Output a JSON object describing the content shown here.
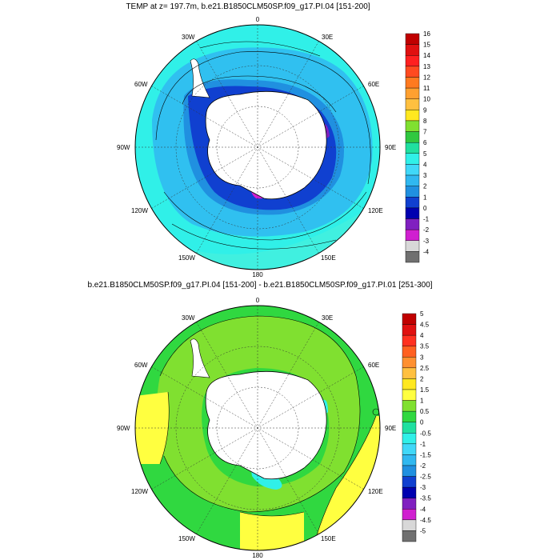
{
  "panels": [
    {
      "title": "TEMP at z= 197.7m, b.e21.B1850CLM50SP.f09_g17.PI.04 [151-200]",
      "colorbar": {
        "labels": [
          "16",
          "15",
          "14",
          "13",
          "12",
          "11",
          "10",
          "9",
          "8",
          "7",
          "6",
          "5",
          "4",
          "3",
          "2",
          "1",
          "0",
          "-1",
          "-2",
          "-3",
          "-4"
        ],
        "colors": [
          "#c00000",
          "#e01010",
          "#ff2020",
          "#ff4a20",
          "#ff7a20",
          "#ffa030",
          "#ffc040",
          "#ffe820",
          "#80e030",
          "#30c840",
          "#20e0a0",
          "#30f0e8",
          "#40d8f8",
          "#30b8f0",
          "#2090e0",
          "#1040d0",
          "#0000b0",
          "#8020c0",
          "#d020d0",
          "#d8d8d8",
          "#707070"
        ]
      },
      "lon_labels": [
        "0",
        "30E",
        "60E",
        "90E",
        "120E",
        "150E",
        "180",
        "150W",
        "120W",
        "90W",
        "60W",
        "30W"
      ]
    },
    {
      "title": "b.e21.B1850CLM50SP.f09_g17.PI.04 [151-200] - b.e21.B1850CLM50SP.f09_g17.PI.01 [251-300]",
      "colorbar": {
        "labels": [
          "5",
          "4.5",
          "4",
          "3.5",
          "3",
          "2.5",
          "2",
          "1.5",
          "1",
          "0.5",
          "0",
          "-0.5",
          "-1",
          "-1.5",
          "-2",
          "-2.5",
          "-3",
          "-3.5",
          "-4",
          "-4.5",
          "-5"
        ],
        "colors": [
          "#c00000",
          "#e01010",
          "#ff3020",
          "#ff6020",
          "#ff9030",
          "#ffc040",
          "#ffe820",
          "#ffff40",
          "#80e030",
          "#30d840",
          "#20e0a0",
          "#30f0e8",
          "#40d8f8",
          "#30b8f0",
          "#2090e0",
          "#1040d0",
          "#0000b0",
          "#8020c0",
          "#d020d0",
          "#d8d8d8",
          "#707070"
        ]
      },
      "lon_labels": [
        "0",
        "30E",
        "60E",
        "90E",
        "120E",
        "150E",
        "180",
        "150W",
        "120W",
        "90W",
        "60W",
        "30W"
      ]
    }
  ]
}
